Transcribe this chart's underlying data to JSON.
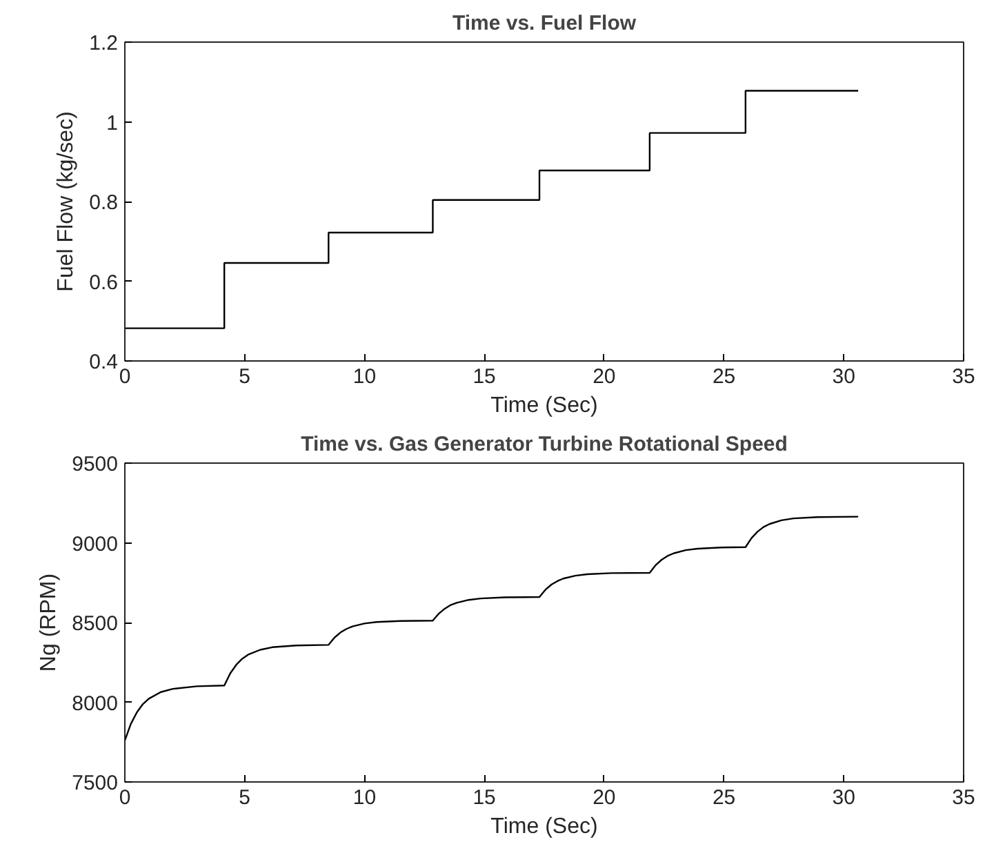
{
  "chart_data": [
    {
      "type": "step",
      "title": "Time vs. Fuel Flow",
      "xlabel": "Time (Sec)",
      "ylabel": "Fuel Flow (kg/sec)",
      "x": [
        0,
        4.15,
        8.5,
        12.85,
        17.3,
        21.9,
        25.9,
        30.6
      ],
      "series": [
        {
          "color": "#000000",
          "values": [
            0.482,
            0.646,
            0.722,
            0.804,
            0.878,
            0.972,
            1.078,
            1.078
          ]
        }
      ],
      "xlim": [
        0,
        35
      ],
      "xticks": [
        0,
        5,
        10,
        15,
        20,
        25,
        30,
        35
      ],
      "ylim": [
        0.4,
        1.2
      ],
      "yticks": [
        0.4,
        0.6,
        0.8,
        1,
        1.2
      ],
      "grid": false
    },
    {
      "type": "line",
      "title": "Time vs. Gas Generator Turbine Rotational Speed",
      "xlabel": "Time (Sec)",
      "ylabel": "Ng (RPM)",
      "x": [
        0,
        0.25,
        0.5,
        0.75,
        1,
        1.5,
        2,
        3,
        4.15,
        4.4,
        4.65,
        4.9,
        5.15,
        5.65,
        6.15,
        7.15,
        8.5,
        8.75,
        9.0,
        9.25,
        9.5,
        10,
        10.5,
        11.5,
        12.85,
        13.1,
        13.35,
        13.6,
        13.85,
        14.35,
        14.85,
        15.85,
        17.3,
        17.55,
        17.8,
        18.05,
        18.3,
        18.8,
        19.3,
        20.3,
        21.9,
        22.15,
        22.4,
        22.65,
        22.9,
        23.4,
        23.9,
        24.9,
        25.9,
        26.15,
        26.4,
        26.65,
        26.9,
        27.4,
        27.9,
        28.9,
        30.6
      ],
      "series": [
        {
          "color": "#000000",
          "values": [
            7760,
            7864,
            7936,
            7988,
            8022,
            8064,
            8084,
            8100,
            8105,
            8182,
            8235,
            8273,
            8299,
            8329,
            8345,
            8356,
            8360,
            8406,
            8438,
            8460,
            8476,
            8494,
            8503,
            8510,
            8512,
            8556,
            8587,
            8610,
            8624,
            8642,
            8651,
            8658,
            8660,
            8706,
            8738,
            8760,
            8776,
            8794,
            8803,
            8810,
            8812,
            8860,
            8894,
            8918,
            8934,
            8954,
            8963,
            8971,
            8973,
            9030,
            9070,
            9099,
            9118,
            9141,
            9153,
            9161,
            9164
          ]
        }
      ],
      "xlim": [
        0,
        35
      ],
      "xticks": [
        0,
        5,
        10,
        15,
        20,
        25,
        30,
        35
      ],
      "ylim": [
        7500,
        9500
      ],
      "yticks": [
        7500,
        8000,
        8500,
        9000,
        9500
      ],
      "grid": false
    }
  ]
}
